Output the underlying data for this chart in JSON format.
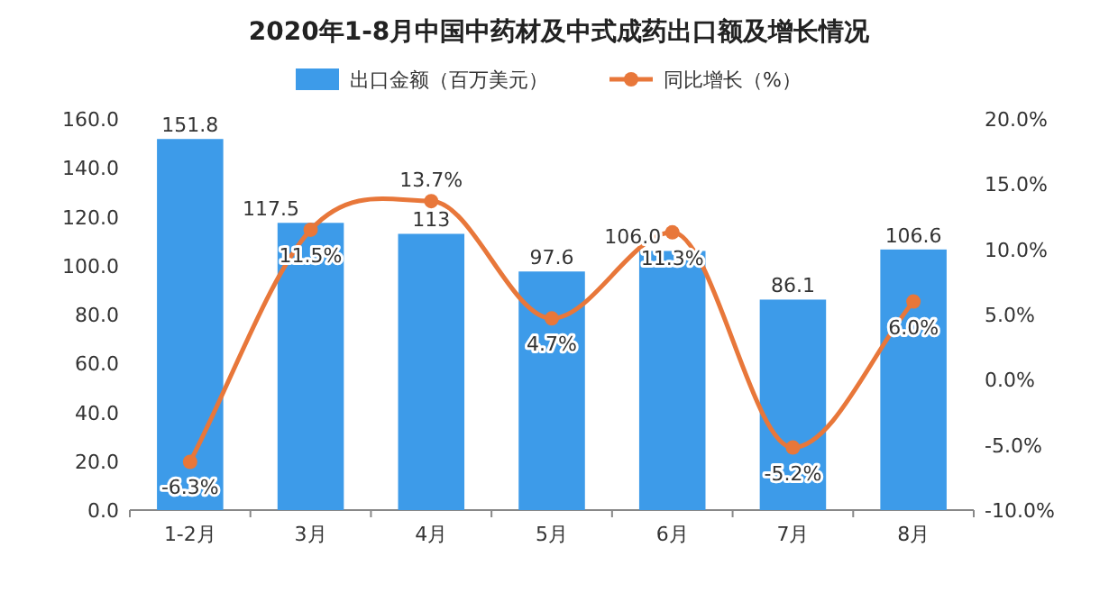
{
  "chart_data": {
    "type": "bar",
    "title": "2020年1-8月中国中药材及中式成药出口额及增长情况",
    "categories": [
      "1-2月",
      "3月",
      "4月",
      "5月",
      "6月",
      "7月",
      "8月"
    ],
    "series": [
      {
        "name": "出口金额（百万美元）",
        "color": "#3d9be9",
        "values": [
          151.8,
          117.5,
          113,
          97.6,
          106.0,
          86.1,
          106.6
        ],
        "value_labels": [
          "151.8",
          "117.5",
          "113",
          "97.6",
          "106.0",
          "86.1",
          "106.6"
        ]
      },
      {
        "name": "同比增长（%）",
        "type": "line",
        "axis": "y2",
        "color": "#e8773a",
        "marker": "circle",
        "values": [
          -6.3,
          11.5,
          13.7,
          4.7,
          11.3,
          -5.2,
          6.0
        ],
        "value_labels": [
          "-6.3%",
          "11.5%",
          "13.7%",
          "4.7%",
          "11.3%",
          "-5.2%",
          "6.0%"
        ]
      }
    ],
    "ylim": [
      0,
      160
    ],
    "yticks": [
      {
        "value": 0,
        "label": "0.0"
      },
      {
        "value": 20,
        "label": "20.0"
      },
      {
        "value": 40,
        "label": "40.0"
      },
      {
        "value": 60,
        "label": "60.0"
      },
      {
        "value": 80,
        "label": "80.0"
      },
      {
        "value": 100,
        "label": "100.0"
      },
      {
        "value": 120,
        "label": "120.0"
      },
      {
        "value": 140,
        "label": "140.0"
      },
      {
        "value": 160,
        "label": "160.0"
      }
    ],
    "y2lim": [
      -10,
      20
    ],
    "y2ticks": [
      {
        "value": -10,
        "label": "-10.0%"
      },
      {
        "value": -5,
        "label": "-5.0%"
      },
      {
        "value": 0,
        "label": "0.0%"
      },
      {
        "value": 5,
        "label": "5.0%"
      },
      {
        "value": 10,
        "label": "10.0%"
      },
      {
        "value": 15,
        "label": "15.0%"
      },
      {
        "value": 20,
        "label": "20.0%"
      }
    ],
    "legend": "top"
  }
}
